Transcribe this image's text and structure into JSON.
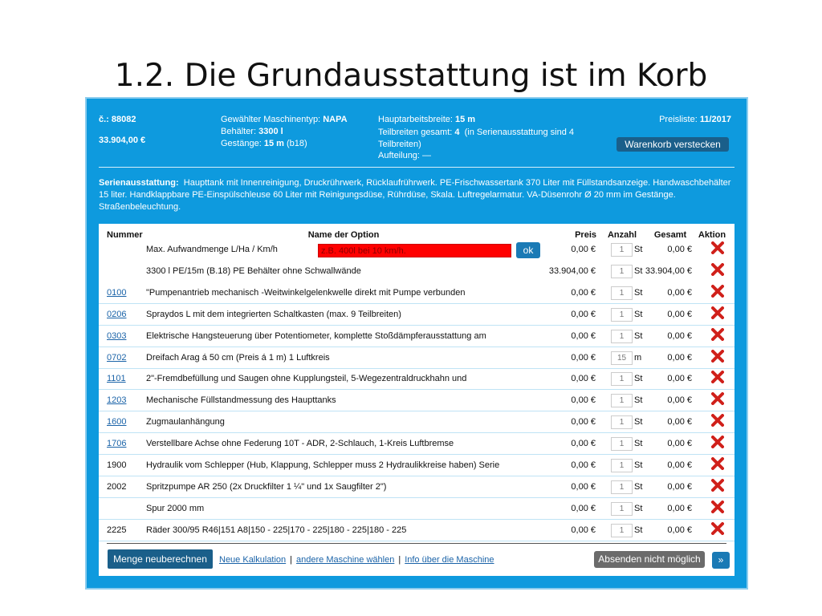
{
  "slide_title": "1.2. Die Grundausstattung ist im Korb",
  "header": {
    "number": "č.: 88082",
    "price": "33.904,00 €",
    "machine_type_label": "Gewählter Maschinentyp:",
    "machine_type": "NAPA",
    "tank_label": "Behälter:",
    "tank": "3300 l",
    "boom_label": "Gestänge:",
    "boom": "15 m",
    "boom_note": "(b18)",
    "work_width_label": "Hauptarbeitsbreite:",
    "work_width": "15 m",
    "sections_label": "Teilbreiten gesamt:",
    "sections": "4",
    "sections_note": "(in Serienausstattung sind 4 Teilbreiten)",
    "division_label": "Aufteilung:",
    "division": "—",
    "pricelist_label": "Preisliste:",
    "pricelist": "11/2017",
    "hide_button": "Warenkorb verstecken"
  },
  "standard": {
    "label": "Serienausstattung:",
    "text": "Haupttank mit Innenreinigung, Druckrührwerk, Rücklaufrührwerk. PE-Frischwassertank 370 Liter mit Füllstandsanzeige. Handwaschbehälter 15 liter. Handklappbare PE-Einspülschleuse 60 Liter mit Reinigungsdüse, Rührdüse, Skala. Luftregelarmatur. VA-Düsenrohr Ø 20 mm im Gestänge. Straßenbeleuchtung."
  },
  "table": {
    "columns": {
      "number": "Nummer",
      "name": "Name der Option",
      "price": "Preis",
      "qty": "Anzahl",
      "total": "Gesamt",
      "action": "Aktion"
    },
    "input_placeholder": "z.B. 400l bei 10 km/h.",
    "ok_button": "ok",
    "rows": [
      {
        "name": "Max. Aufwandmenge L/Ha / Km/h",
        "price": "0,00 €",
        "qty": 1,
        "unit": "St",
        "total": "0,00 €"
      },
      {
        "name": "3300 l PE/15m (B.18) PE Behälter ohne Schwallwände",
        "price": "33.904,00 €",
        "qty": 1,
        "unit": "St",
        "total": "33.904,00 €"
      },
      {
        "number": "0100",
        "link": true,
        "name": "\"Pumpenantrieb mechanisch -Weitwinkelgelenkwelle direkt mit Pumpe verbunden",
        "price": "0,00 €",
        "qty": 1,
        "unit": "St",
        "total": "0,00 €"
      },
      {
        "number": "0206",
        "link": true,
        "name": "Spraydos L mit dem integrierten Schaltkasten (max. 9 Teilbreiten)",
        "price": "0,00 €",
        "qty": 1,
        "unit": "St",
        "total": "0,00 €"
      },
      {
        "number": "0303",
        "link": true,
        "name": "Elektrische Hangsteuerung über Potentiometer, komplette Stoßdämpferausstattung am",
        "price": "0,00 €",
        "qty": 1,
        "unit": "St",
        "total": "0,00 €"
      },
      {
        "number": "0702",
        "link": true,
        "name": "Dreifach Arag á 50 cm (Preis á 1 m) 1 Luftkreis",
        "price": "0,00 €",
        "qty": 15,
        "unit": "m",
        "total": "0,00 €"
      },
      {
        "number": "1101",
        "link": true,
        "name": "2\"-Fremdbefüllung und Saugen ohne Kupplungsteil, 5-Wegezentraldruckhahn und",
        "price": "0,00 €",
        "qty": 1,
        "unit": "St",
        "total": "0,00 €"
      },
      {
        "number": "1203",
        "link": true,
        "name": "Mechanische Füllstandmessung des Haupttanks",
        "price": "0,00 €",
        "qty": 1,
        "unit": "St",
        "total": "0,00 €"
      },
      {
        "number": "1600",
        "link": true,
        "name": "Zugmaulanhängung",
        "price": "0,00 €",
        "qty": 1,
        "unit": "St",
        "total": "0,00 €"
      },
      {
        "number": "1706",
        "link": true,
        "name": "Verstellbare Achse ohne Federung 10T - ADR, 2-Schlauch, 1-Kreis Luftbremse",
        "price": "0,00 €",
        "qty": 1,
        "unit": "St",
        "total": "0,00 €"
      },
      {
        "number": "1900",
        "link": false,
        "name": "Hydraulik vom Schlepper (Hub, Klappung, Schlepper muss 2 Hydraulikkreise haben) Serie",
        "price": "0,00 €",
        "qty": 1,
        "unit": "St",
        "total": "0,00 €"
      },
      {
        "number": "2002",
        "link": false,
        "name": "Spritzpumpe AR 250 (2x Druckfilter 1 ¼\" und 1x Saugfilter 2\")",
        "price": "0,00 €",
        "qty": 1,
        "unit": "St",
        "total": "0,00 €"
      },
      {
        "name": "Spur 2000 mm",
        "price": "0,00 €",
        "qty": 1,
        "unit": "St",
        "total": "0,00 €"
      },
      {
        "number": "2225",
        "link": false,
        "name": "Räder 300/95 R46|151 A8|150 - 225|170 - 225|180 - 225|180 - 225",
        "price": "0,00 €",
        "qty": 1,
        "unit": "St",
        "total": "0,00 €"
      }
    ]
  },
  "footer": {
    "recalc_button": "Menge neuberechnen",
    "links": [
      "Neue Kalkulation",
      "andere Maschine wählen",
      "Info über die Maschine"
    ],
    "separator": "|",
    "submit_button": "Absenden nicht möglich",
    "next_button": "»"
  }
}
